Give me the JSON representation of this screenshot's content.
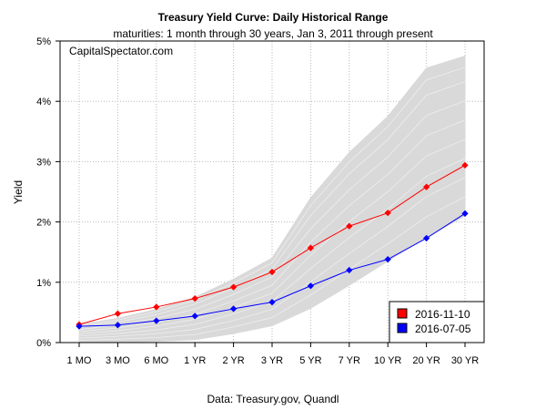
{
  "chart_data": {
    "type": "line",
    "title": "Treasury Yield Curve: Daily Historical Range",
    "subtitle": "maturities: 1 month through 30 years, Jan 3, 2011 through present",
    "xlabel": "Data: Treasury.gov, Quandl",
    "ylabel": "Yield",
    "watermark": "CapitalSpectator.com",
    "categories": [
      "1 MO",
      "3 MO",
      "6 MO",
      "1 YR",
      "2 YR",
      "3 YR",
      "5 YR",
      "7 YR",
      "10 YR",
      "20 YR",
      "30 YR"
    ],
    "yticks": [
      "0%",
      "1%",
      "2%",
      "3%",
      "4%",
      "5%"
    ],
    "ylim": [
      0,
      5
    ],
    "grid": true,
    "legend_position": "bottom-right",
    "historical_range": {
      "color": "#d9d9d9",
      "low": [
        0.0,
        0.01,
        0.02,
        0.05,
        0.15,
        0.28,
        0.57,
        0.95,
        1.35,
        1.75,
        2.1
      ],
      "high": [
        0.3,
        0.4,
        0.55,
        0.75,
        1.05,
        1.4,
        2.4,
        3.15,
        3.75,
        4.55,
        4.75
      ]
    },
    "series": [
      {
        "name": "2016-11-10",
        "color": "#ff0000",
        "marker_color": "#ff0000",
        "values": [
          0.3,
          0.48,
          0.59,
          0.73,
          0.92,
          1.17,
          1.57,
          1.93,
          2.15,
          2.58,
          2.94
        ]
      },
      {
        "name": "2016-07-05",
        "color": "#0000ff",
        "marker_color": "#0000ff",
        "values": [
          0.27,
          0.29,
          0.36,
          0.44,
          0.56,
          0.67,
          0.94,
          1.2,
          1.38,
          1.73,
          2.14
        ]
      }
    ]
  }
}
